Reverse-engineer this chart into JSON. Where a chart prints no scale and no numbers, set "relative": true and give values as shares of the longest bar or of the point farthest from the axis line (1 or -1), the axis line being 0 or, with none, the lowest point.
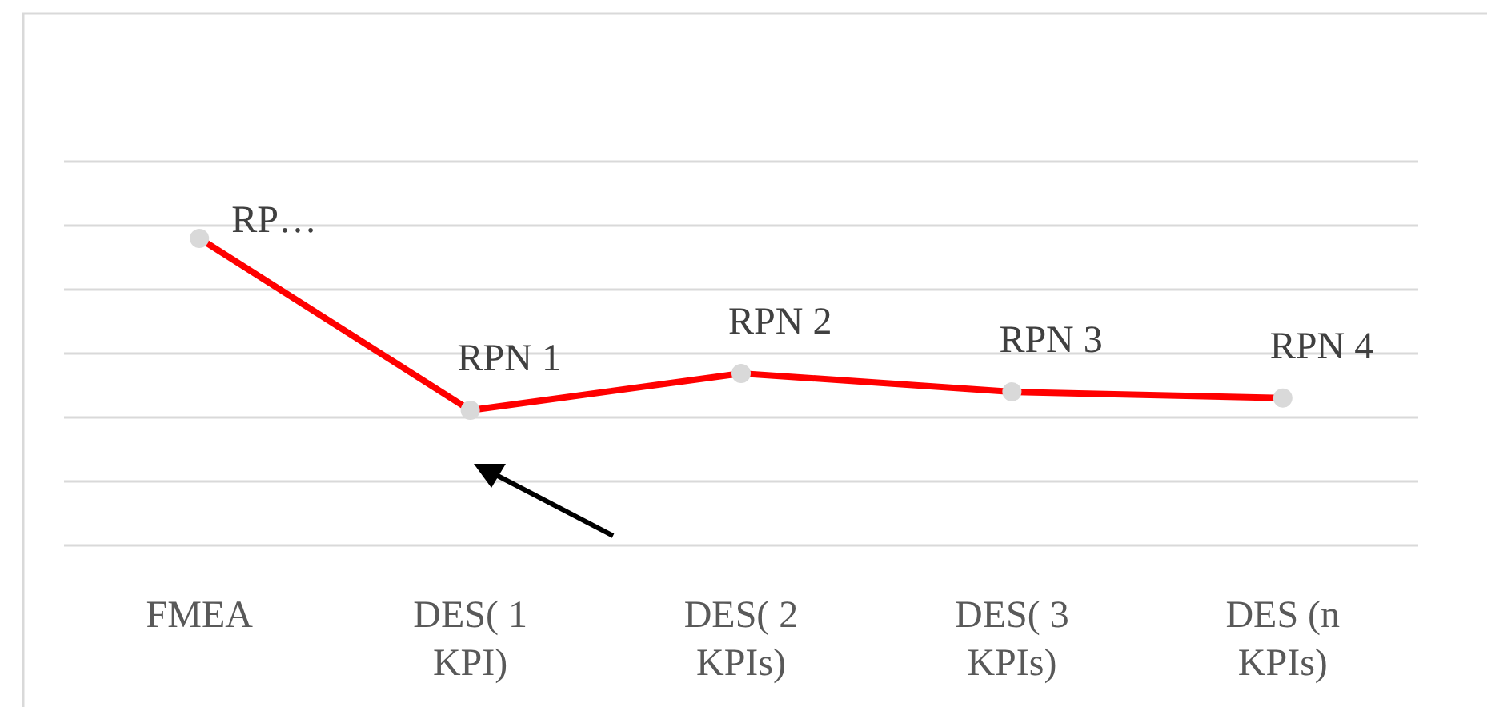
{
  "chart_data": {
    "type": "line",
    "relative": true,
    "categories": [
      "FMEA",
      "DES( 1 KPI)",
      "DES( 2 KPIs)",
      "DES( 3 KPIs)",
      "DES (n KPIs)"
    ],
    "series": [
      {
        "color": "#ff0000",
        "values": [
          1,
          0.44,
          0.56,
          0.5,
          0.48
        ]
      }
    ],
    "annotations": [
      {
        "text": "RP…",
        "x": "FMEA",
        "y": 1
      },
      {
        "text": "RPN 1",
        "x": "DES( 1 KPI)",
        "y": 0.44
      },
      {
        "text": "RPN 2",
        "x": "DES( 2 KPIs)",
        "y": 0.56
      },
      {
        "text": "RPN 3",
        "x": "DES( 3 KPIs)",
        "y": 0.5
      },
      {
        "text": "RPN 4",
        "x": "DES (n KPIs)",
        "y": 0.48
      }
    ],
    "grid": true,
    "marker": "circle",
    "line_style": "solid"
  }
}
